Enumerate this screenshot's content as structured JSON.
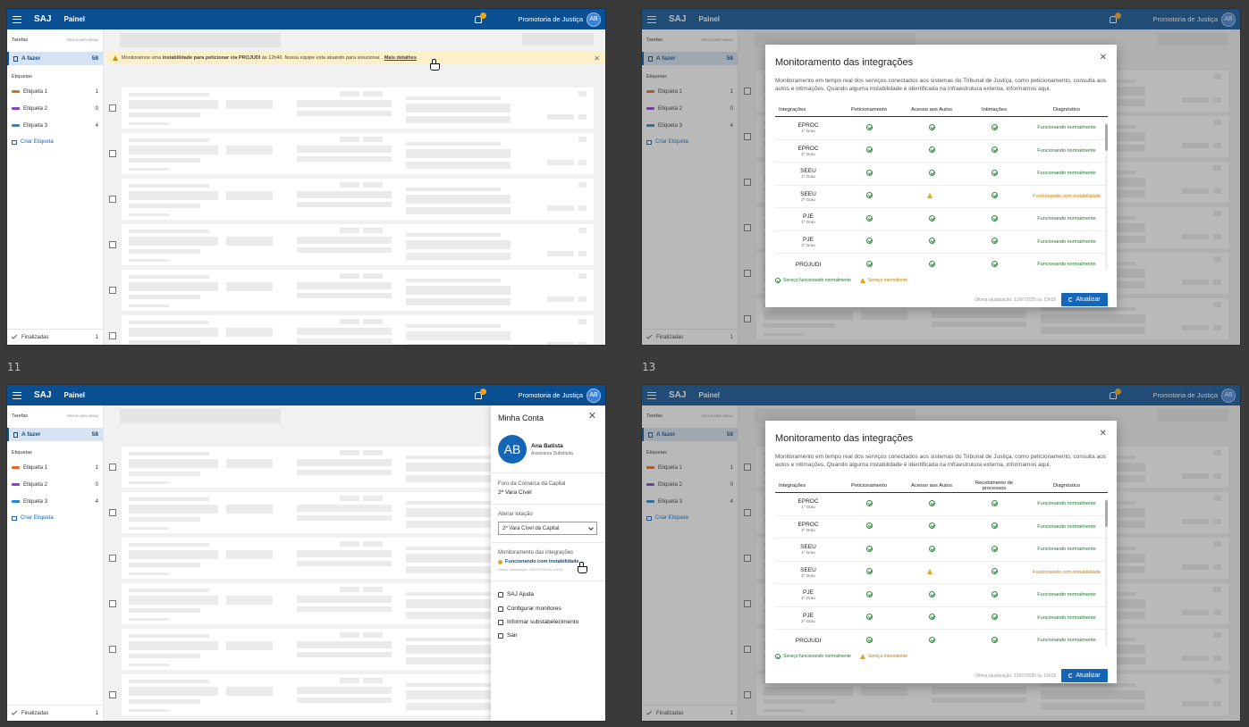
{
  "labels": {
    "bottom_left": "11",
    "bottom_right": "13"
  },
  "app": {
    "brand": "SAJ",
    "page": "Painel",
    "org": "Promotoria de Justiça",
    "avatar": "AB"
  },
  "sidebar": {
    "title": "Tarefas",
    "collapse": "RECOLHER MENU",
    "todo": {
      "label": "A fazer",
      "count": "58"
    },
    "tags_title": "Etiquetas",
    "tags": [
      {
        "label": "Etiqueta 1",
        "count": "1",
        "color": "#e8662a"
      },
      {
        "label": "Etiqueta 2",
        "count": "0",
        "color": "#8b3fd1"
      },
      {
        "label": "Etiqueta 3",
        "count": "4",
        "color": "#1b8ad6"
      }
    ],
    "create": "Criar Etiqueta",
    "done": {
      "label": "Finalizadas",
      "count": "1"
    }
  },
  "alert": {
    "pre": "Monitoramos uma",
    "bold": "instabilidade para peticionar via PROJUDI",
    "post": "às 12h40. Nossa equipe esta atuando para solucionar.",
    "link": "Mais detalhes"
  },
  "modal": {
    "title": "Monitoramento das integrações",
    "desc": "Monitoramento em tempo real dos serviços conectados aos sistemas do Tribunal de Justiça, como peticionamento, consulta aos autos e intimações. Quando alguma instabilidade é identificada na infraestrutura externa, informamos aqui.",
    "cols_a": [
      "Integrações",
      "Peticionamento",
      "Acesso aos Autos",
      "Intimações",
      "Diagnóstico"
    ],
    "cols_b": [
      "Integrações",
      "Peticionamento",
      "Acesso aos Autos",
      "Recebimento de processos",
      "Diagnóstico"
    ],
    "rows": [
      {
        "name": "EPROC",
        "grade": "1º Grau",
        "s": [
          "ok",
          "ok",
          "ok"
        ],
        "diag": "Funcionando normalmente",
        "warn": false
      },
      {
        "name": "EPROC",
        "grade": "2º Grau",
        "s": [
          "ok",
          "ok",
          "ok"
        ],
        "diag": "Funcionando normalmente",
        "warn": false
      },
      {
        "name": "SEEU",
        "grade": "1º Grau",
        "s": [
          "ok",
          "ok",
          "ok"
        ],
        "diag": "Funcionando normalmente",
        "warn": false
      },
      {
        "name": "SEEU",
        "grade": "2º Grau",
        "s": [
          "ok",
          "warn",
          "ok"
        ],
        "diag": "Funcionando com instabilidade",
        "warn": true
      },
      {
        "name": "PJE",
        "grade": "1º Grau",
        "s": [
          "ok",
          "ok",
          "ok"
        ],
        "diag": "Funcionando normalmente",
        "warn": false
      },
      {
        "name": "PJE",
        "grade": "2º Grau",
        "s": [
          "ok",
          "ok",
          "ok"
        ],
        "diag": "Funcionando normalmente",
        "warn": false
      },
      {
        "name": "PROJUDI",
        "grade": "",
        "s": [
          "ok",
          "ok",
          "ok"
        ],
        "diag": "Funcionando normalmente",
        "warn": false
      }
    ],
    "legend_ok": "Serviço funcionando normalmente",
    "legend_warn": "Serviço intermitente",
    "updated": "Última atualização: 13/07/2025 às 10h18",
    "refresh": "Atualizar"
  },
  "account": {
    "title": "Minha Conta",
    "avatar": "AB",
    "name": "Ana Batista",
    "role": "Assessora Substituta",
    "forum": "Foro da Comarca da Capital",
    "vara": "2ª Vara Cível",
    "change_label": "Alterar lotação",
    "select_value": "2ª Vara Cível da Capital",
    "mon_label": "Monitoramento das integrações",
    "mon_status": "Funcionando com instabilidade",
    "mon_updated": "Última atualização: 13/07/2025 às 10h18",
    "menu": [
      "SAJ Ajuda",
      "Configurar monitores",
      "Informar substabelecimento",
      "Sair"
    ]
  }
}
